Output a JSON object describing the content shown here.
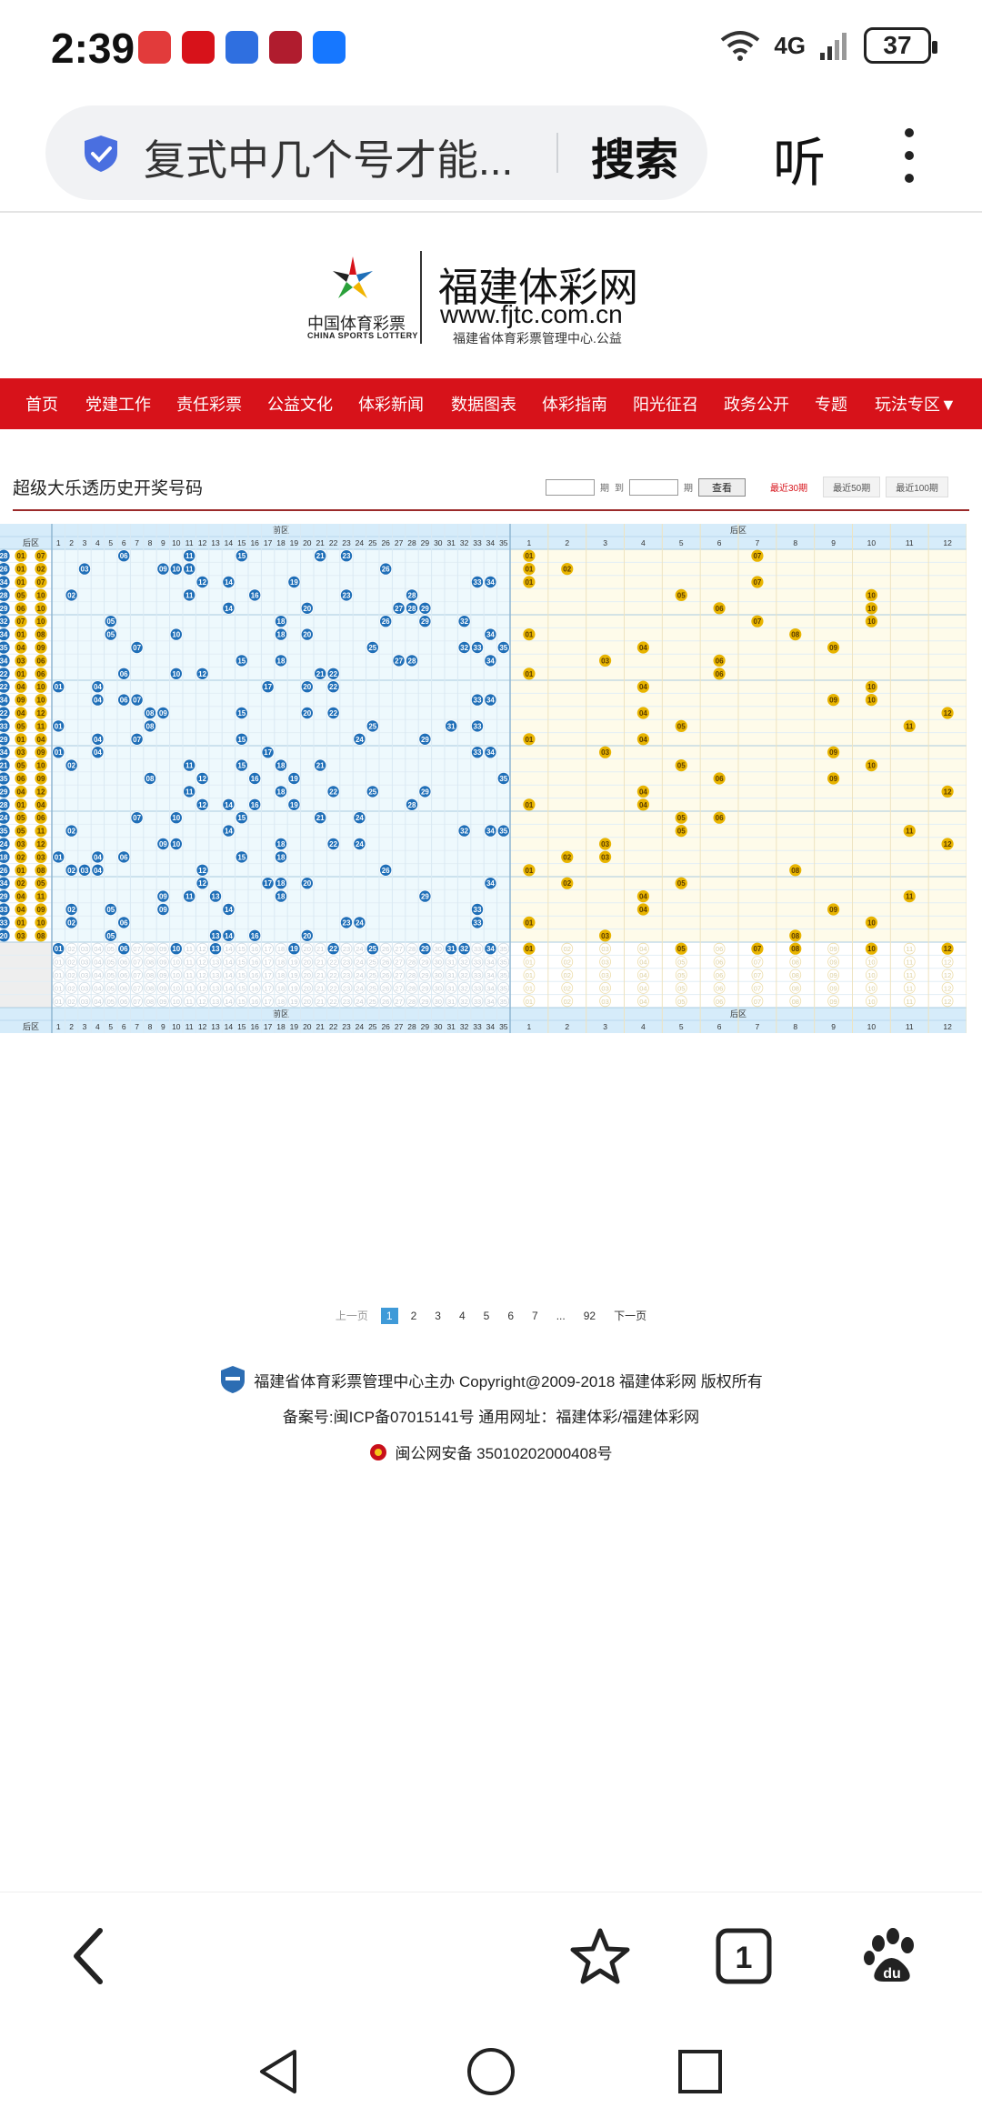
{
  "status_bar": {
    "time": "2:39",
    "network": "4G",
    "battery": "37",
    "app_icons": [
      {
        "name": "huawei-icon",
        "color": "#e23b3b"
      },
      {
        "name": "news-icon",
        "color": "#d7121a"
      },
      {
        "name": "security-icon",
        "color": "#2f6fe0"
      },
      {
        "name": "game-icon",
        "color": "#b01c2e"
      },
      {
        "name": "alipay-icon",
        "color": "#1677ff"
      }
    ]
  },
  "browser": {
    "address_text": "复式中几个号才能...",
    "search_label": "搜索",
    "listen_label": "听"
  },
  "site": {
    "logo_cn": "中国体育彩票",
    "logo_en": "CHINA SPORTS LOTTERY",
    "title": "福建体彩网",
    "url": "www.fjtc.com.cn",
    "subtitle": "福建省体育彩票管理中心.公益"
  },
  "nav": [
    "首页",
    "党建工作",
    "责任彩票",
    "公益文化",
    "体彩新闻",
    "数据图表",
    "体彩指南",
    "阳光征召",
    "政务公开",
    "专题",
    "玩法专区▼"
  ],
  "content": {
    "page_title": "超级大乐透历史开奖号码",
    "filter": {
      "period_label": "期",
      "to_label": "到",
      "query_button": "查看"
    },
    "tabs": [
      "最近30期",
      "最近50期",
      "最近100期"
    ],
    "active_tab": 0
  },
  "table": {
    "front_zone_label": "前区",
    "back_zone_label": "后区",
    "back_col_label": "后区",
    "front_numbers": 35,
    "back_numbers": 12,
    "colors": {
      "front_ball": "#1f6fb8",
      "back_ball": "#e8b400",
      "front_bg": "#eef9fd",
      "back_bg": "#fefbea",
      "header_bg": "#d6ecfa"
    },
    "draws": [
      {
        "prev": "28",
        "b": [
          "01",
          "07"
        ],
        "front": [
          6,
          11,
          15,
          21,
          23
        ],
        "back": [
          1,
          7
        ]
      },
      {
        "prev": "26",
        "b": [
          "01",
          "02"
        ],
        "front": [
          3,
          9,
          10,
          11,
          26
        ],
        "back": [
          1,
          2
        ]
      },
      {
        "prev": "34",
        "b": [
          "01",
          "07"
        ],
        "front": [
          12,
          14,
          19,
          33,
          34
        ],
        "back": [
          1,
          7
        ]
      },
      {
        "prev": "28",
        "b": [
          "05",
          "10"
        ],
        "front": [
          2,
          11,
          16,
          23,
          28
        ],
        "back": [
          5,
          10
        ]
      },
      {
        "prev": "29",
        "b": [
          "06",
          "10"
        ],
        "front": [
          14,
          20,
          27,
          28,
          29
        ],
        "back": [
          6,
          10
        ]
      },
      {
        "prev": "32",
        "b": [
          "07",
          "10"
        ],
        "front": [
          5,
          18,
          26,
          29,
          32
        ],
        "back": [
          7,
          10
        ]
      },
      {
        "prev": "34",
        "b": [
          "01",
          "08"
        ],
        "front": [
          5,
          10,
          18,
          20,
          34
        ],
        "back": [
          1,
          8
        ]
      },
      {
        "prev": "35",
        "b": [
          "04",
          "09"
        ],
        "front": [
          7,
          25,
          32,
          33,
          35
        ],
        "back": [
          4,
          9
        ]
      },
      {
        "prev": "34",
        "b": [
          "03",
          "06"
        ],
        "front": [
          15,
          18,
          27,
          28,
          34
        ],
        "back": [
          3,
          6
        ]
      },
      {
        "prev": "22",
        "b": [
          "01",
          "06"
        ],
        "front": [
          6,
          10,
          12,
          21,
          22
        ],
        "back": [
          1,
          6
        ]
      },
      {
        "prev": "22",
        "b": [
          "04",
          "10"
        ],
        "front": [
          1,
          4,
          17,
          20,
          22
        ],
        "back": [
          4,
          10
        ]
      },
      {
        "prev": "34",
        "b": [
          "09",
          "10"
        ],
        "front": [
          4,
          6,
          7,
          33,
          34
        ],
        "back": [
          9,
          10
        ]
      },
      {
        "prev": "22",
        "b": [
          "04",
          "12"
        ],
        "front": [
          8,
          9,
          15,
          20,
          22
        ],
        "back": [
          4,
          12
        ]
      },
      {
        "prev": "33",
        "b": [
          "05",
          "11"
        ],
        "front": [
          1,
          8,
          25,
          31,
          33
        ],
        "back": [
          5,
          11
        ]
      },
      {
        "prev": "29",
        "b": [
          "01",
          "04"
        ],
        "front": [
          4,
          7,
          15,
          24,
          29
        ],
        "back": [
          1,
          4
        ]
      },
      {
        "prev": "34",
        "b": [
          "03",
          "09"
        ],
        "front": [
          1,
          4,
          17,
          33,
          34
        ],
        "back": [
          3,
          9
        ]
      },
      {
        "prev": "21",
        "b": [
          "05",
          "10"
        ],
        "front": [
          2,
          11,
          15,
          18,
          21
        ],
        "back": [
          5,
          10
        ]
      },
      {
        "prev": "35",
        "b": [
          "06",
          "09"
        ],
        "front": [
          8,
          12,
          16,
          19,
          35
        ],
        "back": [
          6,
          9
        ]
      },
      {
        "prev": "29",
        "b": [
          "04",
          "12"
        ],
        "front": [
          11,
          18,
          22,
          25,
          29
        ],
        "back": [
          4,
          12
        ]
      },
      {
        "prev": "28",
        "b": [
          "01",
          "04"
        ],
        "front": [
          12,
          14,
          16,
          19,
          28
        ],
        "back": [
          1,
          4
        ]
      },
      {
        "prev": "24",
        "b": [
          "05",
          "06"
        ],
        "front": [
          7,
          10,
          15,
          21,
          24
        ],
        "back": [
          5,
          6
        ]
      },
      {
        "prev": "35",
        "b": [
          "05",
          "11"
        ],
        "front": [
          2,
          14,
          32,
          34,
          35
        ],
        "back": [
          5,
          11
        ]
      },
      {
        "prev": "24",
        "b": [
          "03",
          "12"
        ],
        "front": [
          9,
          10,
          18,
          22,
          24
        ],
        "back": [
          3,
          12
        ]
      },
      {
        "prev": "18",
        "b": [
          "02",
          "03"
        ],
        "front": [
          1,
          4,
          6,
          15,
          18
        ],
        "back": [
          2,
          3
        ]
      },
      {
        "prev": "26",
        "b": [
          "01",
          "08"
        ],
        "front": [
          2,
          3,
          4,
          12,
          26
        ],
        "back": [
          1,
          8
        ]
      },
      {
        "prev": "34",
        "b": [
          "02",
          "05"
        ],
        "front": [
          12,
          17,
          18,
          20,
          34
        ],
        "back": [
          2,
          5
        ]
      },
      {
        "prev": "29",
        "b": [
          "04",
          "11"
        ],
        "front": [
          9,
          11,
          13,
          18,
          29
        ],
        "back": [
          4,
          11
        ]
      },
      {
        "prev": "33",
        "b": [
          "04",
          "09"
        ],
        "front": [
          2,
          5,
          9,
          14,
          33
        ],
        "back": [
          4,
          9
        ]
      },
      {
        "prev": "33",
        "b": [
          "01",
          "10"
        ],
        "front": [
          2,
          6,
          23,
          24,
          33
        ],
        "back": [
          1,
          10
        ]
      },
      {
        "prev": "20",
        "b": [
          "03",
          "08"
        ],
        "front": [
          5,
          13,
          14,
          16,
          20
        ],
        "back": [
          3,
          8
        ]
      }
    ],
    "stats_front": [
      1,
      6,
      10,
      13,
      19,
      22,
      25,
      29,
      31,
      32,
      34
    ],
    "stats_back": [
      1,
      5,
      7,
      8,
      10,
      12
    ]
  },
  "pagination": {
    "prev": "上一页",
    "pages": [
      "1",
      "2",
      "3",
      "4",
      "5",
      "6",
      "7"
    ],
    "ellipsis": "...",
    "last": "92",
    "next": "下一页",
    "current": "1"
  },
  "footer": {
    "line1": "福建省体育彩票管理中心主办 Copyright@2009-2018 福建体彩网 版权所有",
    "line2": "备案号:闽ICP备07015141号    通用网址：福建体彩/福建体彩网",
    "line3": "闽公网安备 35010202000408号"
  }
}
